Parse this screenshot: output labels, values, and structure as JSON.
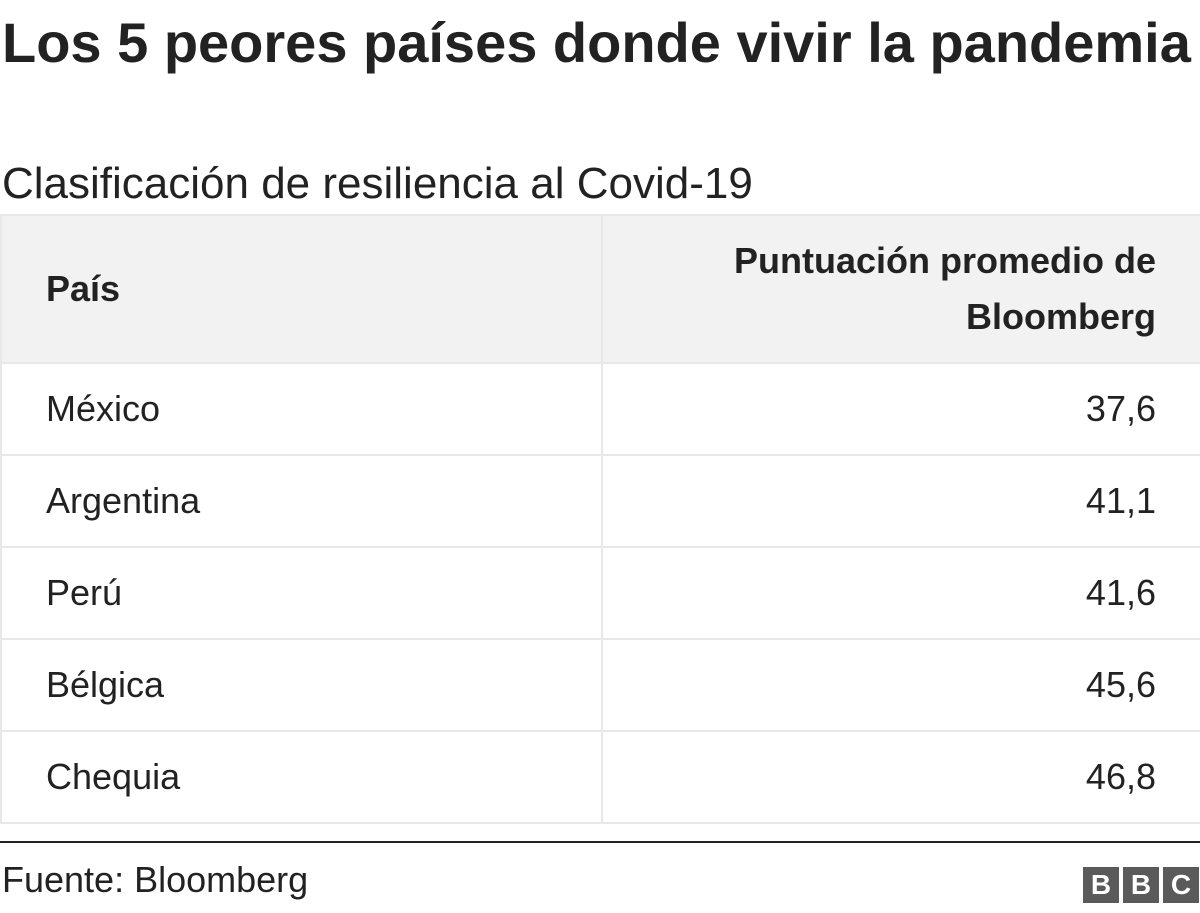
{
  "chart_data": {
    "type": "table",
    "title": "Los 5 peores países donde vivir la pandemia",
    "subtitle": "Clasificación de resiliencia al Covid-19",
    "columns": [
      "País",
      "Puntuación promedio de Bloomberg"
    ],
    "rows": [
      {
        "country": "México",
        "score": "37,6"
      },
      {
        "country": "Argentina",
        "score": "41,1"
      },
      {
        "country": "Perú",
        "score": "41,6"
      },
      {
        "country": "Bélgica",
        "score": "45,6"
      },
      {
        "country": "Chequia",
        "score": "46,8"
      }
    ],
    "source": "Fuente: Bloomberg"
  },
  "logo": {
    "letters": [
      "B",
      "B",
      "C"
    ],
    "color": "#5a5a5a"
  },
  "colors": {
    "text": "#222222",
    "header_bg": "#f2f2f2",
    "border": "#e8e8e8"
  }
}
